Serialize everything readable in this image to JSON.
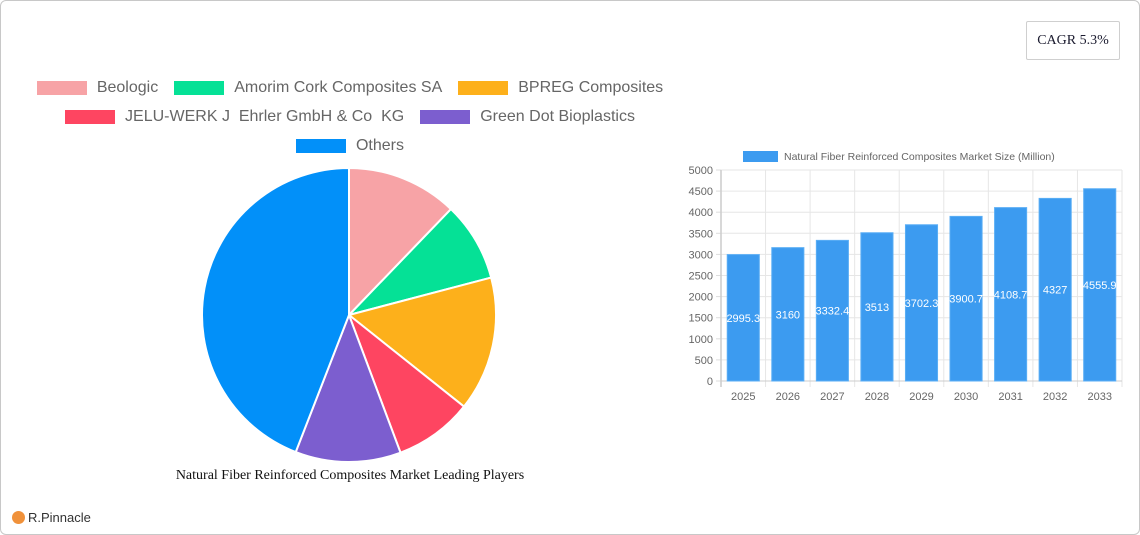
{
  "header": {
    "cagr_label": "CAGR 5.3%"
  },
  "footer": {
    "brand": "R.Pinnacle"
  },
  "pie": {
    "title": "Natural Fiber Reinforced Composites Market Leading Players",
    "legend": [
      {
        "label": "Beologic",
        "color": "#f7a3a6"
      },
      {
        "label": "Amorim Cork Composites SA",
        "color": "#05e196"
      },
      {
        "label": "BPREG Composites",
        "color": "#fdb01b"
      },
      {
        "label": "JELU-WERK J  Ehrler GmbH & Co  KG",
        "color": "#fe4561"
      },
      {
        "label": "Green Dot Bioplastics",
        "color": "#7c5ecf"
      },
      {
        "label": "Others",
        "color": "#0290f9"
      }
    ]
  },
  "bar": {
    "legend_label": "Natural Fiber Reinforced Composites Market Size (Million)",
    "color": "#3c9bf0"
  },
  "chart_data": [
    {
      "type": "pie",
      "title": "Natural Fiber Reinforced Composites Market Leading Players",
      "categories": [
        "Beologic",
        "Amorim Cork Composites SA",
        "BPREG Composites",
        "JELU-WERK J  Ehrler GmbH & Co  KG",
        "Green Dot Bioplastics",
        "Others"
      ],
      "values": [
        12.2,
        8.7,
        14.8,
        8.6,
        11.6,
        44.1
      ],
      "colors": [
        "#f7a3a6",
        "#05e196",
        "#fdb01b",
        "#fe4561",
        "#7c5ecf",
        "#0290f9"
      ],
      "legend_position": "top"
    },
    {
      "type": "bar",
      "title": "",
      "categories": [
        "2025",
        "2026",
        "2027",
        "2028",
        "2029",
        "2030",
        "2031",
        "2032",
        "2033"
      ],
      "series": [
        {
          "name": "Natural Fiber Reinforced Composites Market Size (Million)",
          "values": [
            2995.3,
            3160,
            3332.4,
            3513,
            3702.3,
            3900.7,
            4108.7,
            4327,
            4555.9
          ]
        }
      ],
      "data_labels": [
        "2995.3",
        "3160",
        "3332.4",
        "3513",
        "3702.3",
        "3900.7",
        "4108.7",
        "4327",
        "4555.9"
      ],
      "xlabel": "",
      "ylabel": "",
      "ylim": [
        0,
        5000
      ],
      "yticks": [
        0,
        500,
        1000,
        1500,
        2000,
        2500,
        3000,
        3500,
        4000,
        4500,
        5000
      ],
      "grid": true,
      "legend_position": "top",
      "annotation": "CAGR 5.3%"
    }
  ]
}
